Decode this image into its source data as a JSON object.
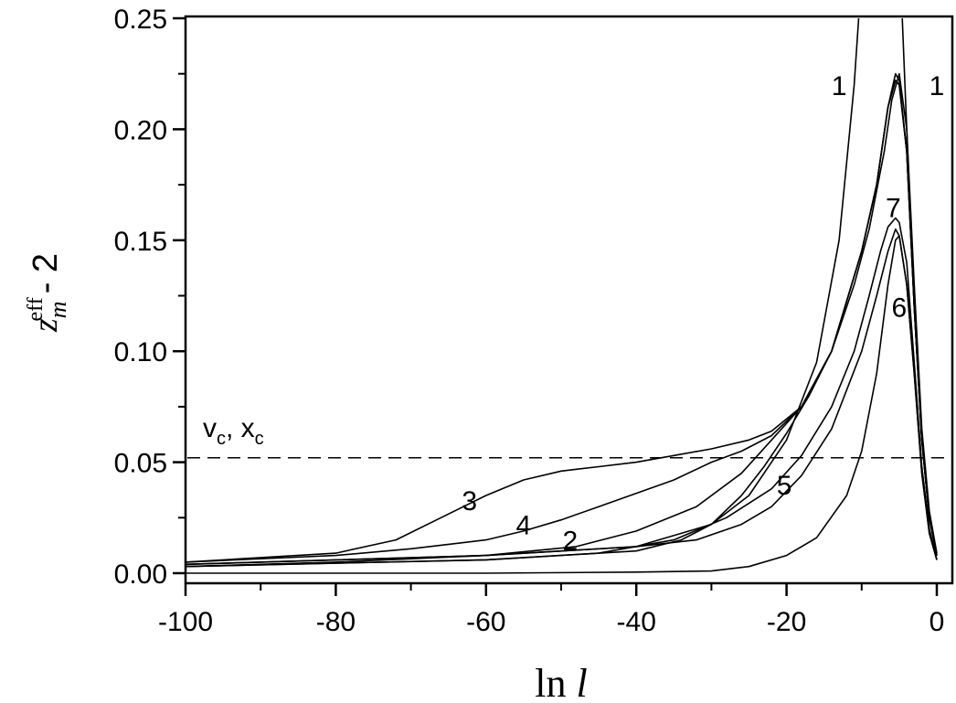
{
  "chart_data": {
    "type": "line",
    "xlabel": {
      "text": "ln",
      "italic_part": "l"
    },
    "ylabel": {
      "base": "z",
      "sub": "m",
      "sup": "eff",
      "suffix": "- 2"
    },
    "xlim": [
      -100,
      0
    ],
    "ylim": [
      -0.004,
      0.25
    ],
    "x_ticks": [
      -100,
      -80,
      -60,
      -40,
      -20,
      0
    ],
    "x_tick_labels": [
      "-100",
      "-80",
      "-60",
      "-40",
      "-20",
      "0"
    ],
    "y_ticks": [
      0.0,
      0.05,
      0.1,
      0.15,
      0.2,
      0.25
    ],
    "y_tick_labels": [
      "0.00",
      "0.05",
      "0.10",
      "0.15",
      "0.20",
      "0.25"
    ],
    "grid": false,
    "reference_line": {
      "y": 0.052,
      "style": "dashed",
      "label": {
        "main1": "v",
        "sub1": "c",
        "sep": ", ",
        "main2": "x",
        "sub2": "c"
      }
    },
    "series": [
      {
        "x": [
          -100,
          -60,
          -40,
          -30,
          -25,
          -20,
          -16,
          -13,
          -11,
          -10.4
        ],
        "y": [
          0.004,
          0.008,
          0.012,
          0.022,
          0.035,
          0.06,
          0.095,
          0.15,
          0.22,
          0.25
        ]
      },
      {
        "x": [
          -4.6,
          -4,
          -3,
          -2,
          -1,
          0
        ],
        "y": [
          0.25,
          0.2,
          0.12,
          0.06,
          0.025,
          0.008
        ]
      },
      {
        "x": [
          -100,
          -60,
          -48,
          -40,
          -32,
          -26,
          -22,
          -18,
          -14,
          -10,
          -8,
          -6.5,
          -5.5,
          -5,
          -4,
          -3,
          -2,
          -1,
          0
        ],
        "y": [
          0.004,
          0.008,
          0.012,
          0.019,
          0.03,
          0.045,
          0.06,
          0.075,
          0.1,
          0.145,
          0.175,
          0.21,
          0.225,
          0.222,
          0.19,
          0.12,
          0.06,
          0.025,
          0.008
        ]
      },
      {
        "x": [
          -100,
          -80,
          -72,
          -66,
          -60,
          -55,
          -50,
          -45,
          -40,
          -35,
          -30,
          -25,
          -22,
          -18,
          -14,
          -10,
          -8,
          -6.5,
          -5.5,
          -5,
          -4,
          -3,
          -2,
          -1,
          0
        ],
        "y": [
          0.005,
          0.009,
          0.015,
          0.025,
          0.035,
          0.042,
          0.046,
          0.048,
          0.05,
          0.053,
          0.056,
          0.06,
          0.064,
          0.075,
          0.1,
          0.145,
          0.175,
          0.21,
          0.222,
          0.22,
          0.19,
          0.12,
          0.06,
          0.025,
          0.008
        ]
      },
      {
        "x": [
          -100,
          -80,
          -70,
          -60,
          -55,
          -50,
          -45,
          -40,
          -35,
          -30,
          -26,
          -22,
          -18,
          -14,
          -10,
          -8,
          -6.5,
          -5.5,
          -5,
          -4,
          -3,
          -2,
          -1,
          0
        ],
        "y": [
          0.005,
          0.008,
          0.011,
          0.015,
          0.019,
          0.024,
          0.03,
          0.036,
          0.042,
          0.05,
          0.055,
          0.062,
          0.075,
          0.1,
          0.145,
          0.175,
          0.21,
          0.222,
          0.22,
          0.19,
          0.12,
          0.06,
          0.025,
          0.008
        ]
      },
      {
        "x": [
          -100,
          -60,
          -40,
          -34,
          -30,
          -26,
          -23,
          -20,
          -17,
          -14,
          -11,
          -9,
          -7,
          -6,
          -5,
          -4,
          -3,
          -2,
          -1,
          0
        ],
        "y": [
          0.003,
          0.006,
          0.01,
          0.015,
          0.022,
          0.035,
          0.048,
          0.063,
          0.08,
          0.1,
          0.13,
          0.155,
          0.19,
          0.213,
          0.225,
          0.2,
          0.13,
          0.065,
          0.028,
          0.009
        ]
      },
      {
        "x": [
          -100,
          -80,
          -60,
          -40,
          -32,
          -26,
          -22,
          -18,
          -14,
          -10,
          -8,
          -6.5,
          -5.5,
          -5,
          -4,
          -3,
          -2,
          -1,
          0
        ],
        "y": [
          0.003,
          0.005,
          0.008,
          0.012,
          0.015,
          0.022,
          0.03,
          0.044,
          0.065,
          0.1,
          0.125,
          0.145,
          0.155,
          0.152,
          0.13,
          0.09,
          0.045,
          0.018,
          0.006
        ]
      },
      {
        "x": [
          -100,
          -60,
          -40,
          -30,
          -25,
          -20,
          -16,
          -12,
          -10,
          -8,
          -6.5,
          -5.5,
          -5,
          -4,
          -3,
          -2,
          -1,
          0
        ],
        "y": [
          0.0,
          0.0,
          0.0005,
          0.001,
          0.003,
          0.008,
          0.016,
          0.035,
          0.055,
          0.09,
          0.13,
          0.15,
          0.152,
          0.13,
          0.09,
          0.045,
          0.018,
          0.006
        ]
      },
      {
        "x": [
          -100,
          -60,
          -45,
          -35,
          -28,
          -22,
          -18,
          -14,
          -11,
          -9,
          -7.5,
          -6.5,
          -5.5,
          -5,
          -4,
          -3,
          -2,
          -1,
          0
        ],
        "y": [
          0.003,
          0.006,
          0.009,
          0.015,
          0.025,
          0.038,
          0.053,
          0.075,
          0.1,
          0.125,
          0.145,
          0.156,
          0.16,
          0.158,
          0.14,
          0.095,
          0.048,
          0.02,
          0.006
        ]
      }
    ],
    "annotations": [
      {
        "text": "1",
        "x": -13,
        "y": 0.22
      },
      {
        "text": "1",
        "x": 0,
        "y": 0.22
      },
      {
        "text": "7",
        "x": -5.8,
        "y": 0.165
      },
      {
        "text": "6",
        "x": -5,
        "y": 0.12
      },
      {
        "text": "5",
        "x": -20.3,
        "y": 0.04
      },
      {
        "text": "3",
        "x": -62.2,
        "y": 0.033
      },
      {
        "text": "4",
        "x": -55,
        "y": 0.022
      },
      {
        "text": "2",
        "x": -48.8,
        "y": 0.015
      }
    ]
  }
}
